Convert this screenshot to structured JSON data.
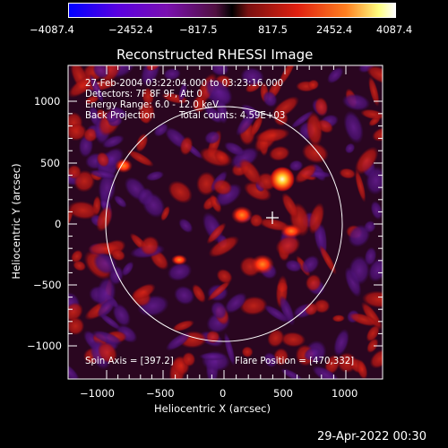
{
  "colorbar": {
    "tick_labels": [
      "−4087.4",
      "−2452.4",
      "−817.5",
      "817.5",
      "2452.4",
      "4087.4"
    ],
    "min": -4087.4,
    "max": 4087.4
  },
  "plot": {
    "title": "Reconstructed RHESSI Image",
    "xlabel": "Heliocentric X (arcsec)",
    "ylabel": "Heliocentric Y (arcsec)",
    "x_tick_labels": [
      "−1000",
      "−500",
      "0",
      "500",
      "1000"
    ],
    "y_tick_labels": [
      "1000",
      "500",
      "0",
      "−500",
      "−1000"
    ],
    "x_range": [
      -1300,
      1300
    ],
    "y_range": [
      -1300,
      1300
    ]
  },
  "info": {
    "time_range": "27-Feb-2004 03:22:04.000 to 03:23:16.000",
    "detectors": "Detectors: 7F 8F 9F, Att 0",
    "energy_range": "Energy Range: 6.0 - 12.0 keV",
    "method": "Back Projection",
    "total_counts": "Total counts: 4.59E+03",
    "spin_axis": "Spin Axis = [397.2]",
    "flare_position": "Flare Position = [470,332]"
  },
  "timestamp": "29-Apr-2022 00:30",
  "colors": {
    "background": "#000000",
    "solar_limb": "#ffffff",
    "crosshair": "#ffffff"
  }
}
